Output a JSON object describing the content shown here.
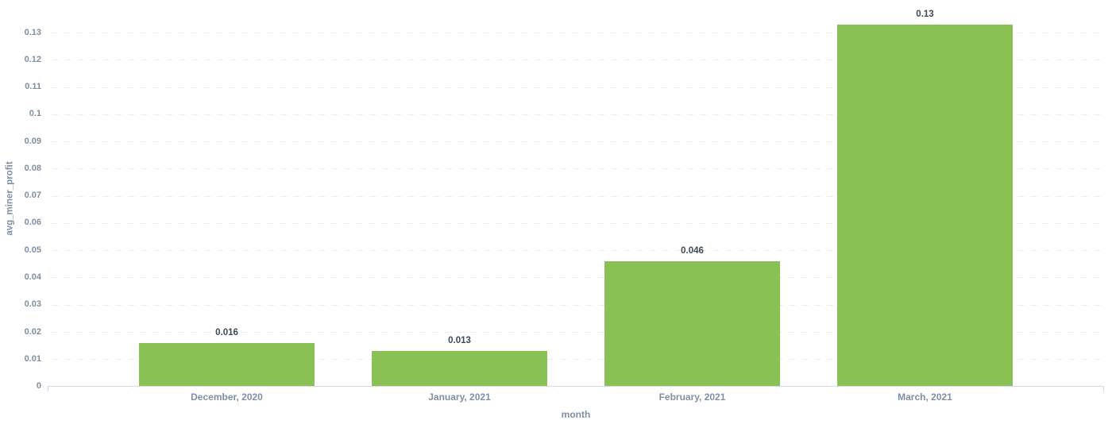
{
  "chart_data": {
    "type": "bar",
    "categories": [
      "December, 2020",
      "January, 2021",
      "February, 2021",
      "March, 2021"
    ],
    "values": [
      0.016,
      0.013,
      0.046,
      0.133
    ],
    "value_labels": [
      "0.016",
      "0.013",
      "0.046",
      "0.13"
    ],
    "xlabel": "month",
    "ylabel": "avg_miner_profit",
    "ylim": [
      0,
      0.13
    ],
    "ytick_step": 0.01,
    "yticks": [
      "0",
      "0.01",
      "0.02",
      "0.03",
      "0.04",
      "0.05",
      "0.06",
      "0.07",
      "0.08",
      "0.09",
      "0.1",
      "0.11",
      "0.12",
      "0.13"
    ],
    "grid": "horizontal-dashed",
    "legend": "none",
    "colors": {
      "bar": "#8ac154",
      "axis_text": "#7e90a4",
      "value_label": "#3d4a56",
      "axis_line": "#d3dae1",
      "gridline": "#e9e9e9",
      "background": "#ffffff"
    }
  }
}
